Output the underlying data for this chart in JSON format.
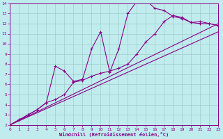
{
  "xlabel": "Windchill (Refroidissement éolien,°C)",
  "xlim": [
    0,
    23
  ],
  "ylim": [
    2,
    14
  ],
  "xticks": [
    0,
    1,
    2,
    3,
    4,
    5,
    6,
    7,
    8,
    9,
    10,
    11,
    12,
    13,
    14,
    15,
    16,
    17,
    18,
    19,
    20,
    21,
    22,
    23
  ],
  "yticks": [
    2,
    3,
    4,
    5,
    6,
    7,
    8,
    9,
    10,
    11,
    12,
    13,
    14
  ],
  "bg_color": "#c0ecee",
  "line_color": "#880088",
  "grid_color": "#a0cccc",
  "line1_x": [
    0,
    1,
    2,
    3,
    4,
    5,
    6,
    7,
    8,
    9,
    10,
    11,
    12,
    13,
    14,
    15,
    16,
    17,
    18,
    19,
    20,
    21,
    22,
    23
  ],
  "line1_y": [
    2.0,
    2.5,
    3.0,
    3.5,
    4.2,
    7.8,
    7.3,
    6.3,
    6.5,
    9.5,
    11.2,
    7.2,
    9.5,
    13.0,
    14.2,
    14.3,
    13.5,
    13.3,
    12.7,
    12.5,
    12.1,
    12.2,
    12.0,
    11.8
  ],
  "line2_x": [
    0,
    1,
    2,
    3,
    4,
    5,
    6,
    7,
    8,
    9,
    10,
    11,
    12,
    13,
    14,
    15,
    16,
    17,
    18,
    19,
    20,
    21,
    22,
    23
  ],
  "line2_y": [
    2.0,
    2.5,
    3.0,
    3.5,
    4.2,
    4.5,
    5.0,
    6.2,
    6.4,
    6.8,
    7.1,
    7.3,
    7.6,
    8.0,
    9.0,
    10.2,
    11.0,
    12.2,
    12.8,
    12.6,
    12.1,
    12.0,
    12.0,
    11.8
  ],
  "line3_x": [
    0,
    23
  ],
  "line3_y": [
    2.0,
    11.2
  ],
  "line4_x": [
    0,
    23
  ],
  "line4_y": [
    2.0,
    12.0
  ]
}
